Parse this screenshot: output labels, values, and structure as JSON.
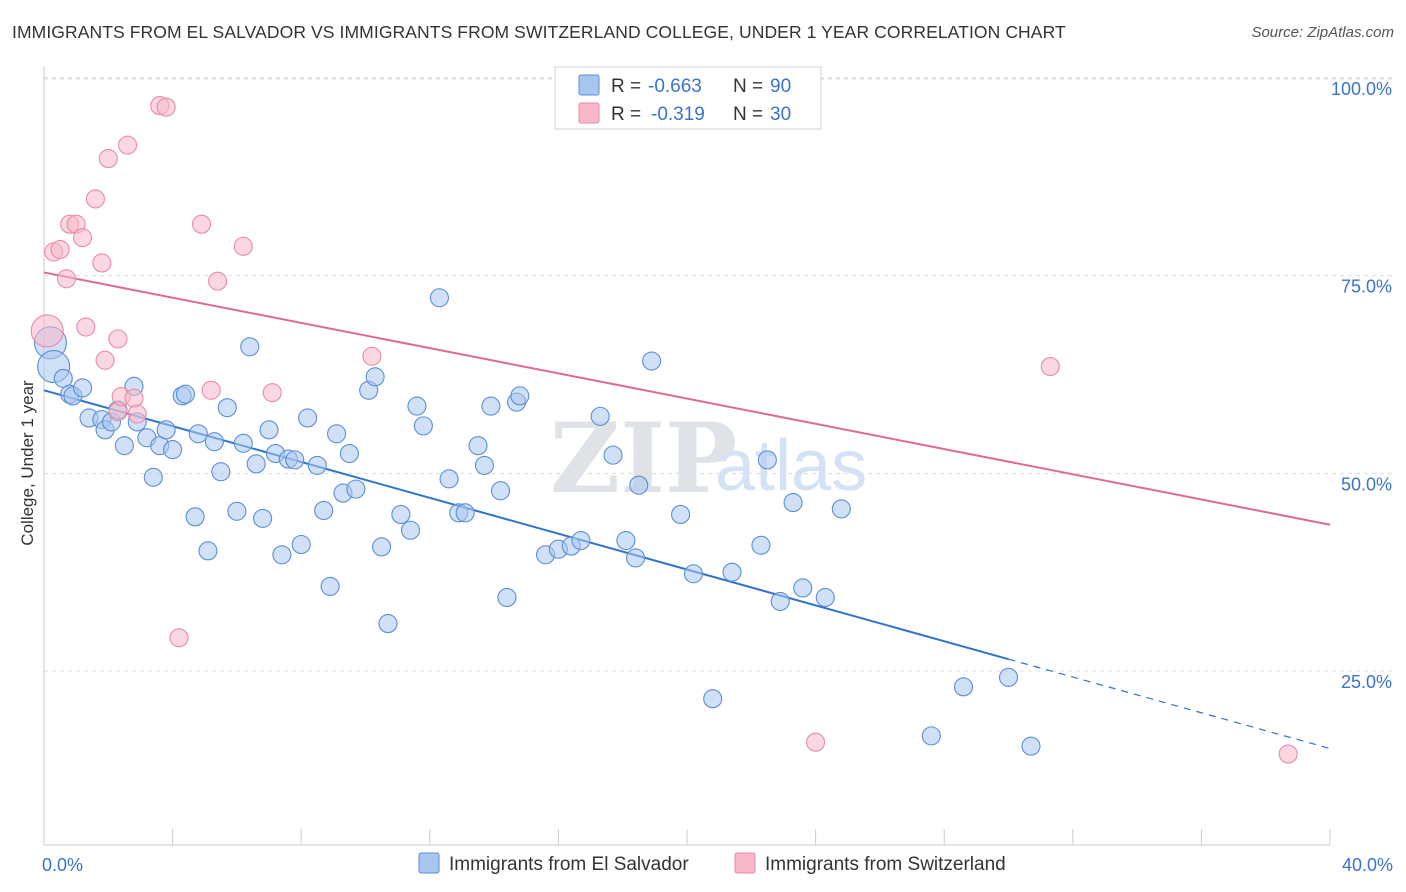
{
  "title": "IMMIGRANTS FROM EL SALVADOR VS IMMIGRANTS FROM SWITZERLAND COLLEGE, UNDER 1 YEAR CORRELATION CHART",
  "source": "Source: ZipAtlas.com",
  "watermark": {
    "zip": "ZIP",
    "atlas": "atlas"
  },
  "legend": {
    "r_label": "R =",
    "n_label": "N =",
    "rows": [
      {
        "r": "-0.663",
        "n": "90",
        "color": "#a9c7ee"
      },
      {
        "r": "-0.319",
        "n": "30",
        "color": "#f7b8c9"
      }
    ]
  },
  "chart_data": {
    "type": "scatter",
    "xlabel": "",
    "ylabel": "College, Under 1 year",
    "xlim": [
      0,
      40
    ],
    "ylim": [
      3,
      101
    ],
    "x_tick_labels": [
      {
        "value": 0,
        "label": "0.0%"
      },
      {
        "value": 40,
        "label": "40.0%"
      }
    ],
    "y_tick_labels": [
      {
        "value": 25,
        "label": "25.0%"
      },
      {
        "value": 50,
        "label": "50.0%"
      },
      {
        "value": 75,
        "label": "75.0%"
      },
      {
        "value": 100,
        "label": "100.0%"
      }
    ],
    "grid": "horizontal dashed",
    "legend_position": "top-center",
    "series": [
      {
        "name": "Immigrants from El Salvador",
        "color": "#a9c7ee",
        "stroke": "#5b8fd4",
        "trend": {
          "x0": 0,
          "y0": 60.5,
          "x1": 30,
          "y1": 26.5,
          "dash_to_x": 40,
          "dash_to_y": 15.2,
          "color": "#2f74c8"
        },
        "points": [
          [
            0.2,
            66.5
          ],
          [
            0.3,
            63.5
          ],
          [
            0.6,
            62
          ],
          [
            0.8,
            60
          ],
          [
            0.9,
            59.8
          ],
          [
            1.2,
            60.8
          ],
          [
            1.4,
            57
          ],
          [
            1.8,
            56.8
          ],
          [
            1.9,
            55.5
          ],
          [
            2.1,
            56.5
          ],
          [
            2.3,
            58
          ],
          [
            2.5,
            53.5
          ],
          [
            2.8,
            61
          ],
          [
            2.9,
            56.5
          ],
          [
            3.2,
            54.5
          ],
          [
            3.4,
            49.5
          ],
          [
            3.6,
            53.5
          ],
          [
            3.8,
            55.5
          ],
          [
            4.0,
            53
          ],
          [
            4.3,
            59.8
          ],
          [
            4.4,
            60
          ],
          [
            4.7,
            44.5
          ],
          [
            4.8,
            55
          ],
          [
            5.1,
            40.2
          ],
          [
            5.3,
            54
          ],
          [
            5.5,
            50.2
          ],
          [
            5.7,
            58.3
          ],
          [
            6.0,
            45.2
          ],
          [
            6.2,
            53.8
          ],
          [
            6.4,
            66
          ],
          [
            6.6,
            51.2
          ],
          [
            6.8,
            44.3
          ],
          [
            7.0,
            55.5
          ],
          [
            7.2,
            52.5
          ],
          [
            7.4,
            39.7
          ],
          [
            7.6,
            51.8
          ],
          [
            7.8,
            51.7
          ],
          [
            8.0,
            41
          ],
          [
            8.2,
            57
          ],
          [
            8.5,
            51
          ],
          [
            8.7,
            45.3
          ],
          [
            8.9,
            35.7
          ],
          [
            9.1,
            55
          ],
          [
            9.3,
            47.5
          ],
          [
            9.5,
            52.5
          ],
          [
            9.7,
            48
          ],
          [
            10.1,
            60.5
          ],
          [
            10.3,
            62.2
          ],
          [
            10.5,
            40.7
          ],
          [
            10.7,
            31
          ],
          [
            11.1,
            44.8
          ],
          [
            11.4,
            42.8
          ],
          [
            11.6,
            58.5
          ],
          [
            11.8,
            56
          ],
          [
            12.3,
            72.2
          ],
          [
            12.6,
            49.3
          ],
          [
            12.9,
            45
          ],
          [
            13.1,
            45
          ],
          [
            13.5,
            53.5
          ],
          [
            13.7,
            51
          ],
          [
            13.9,
            58.5
          ],
          [
            14.2,
            47.8
          ],
          [
            14.4,
            34.3
          ],
          [
            14.7,
            59
          ],
          [
            14.8,
            59.8
          ],
          [
            15.6,
            39.7
          ],
          [
            16.0,
            40.4
          ],
          [
            16.4,
            40.8
          ],
          [
            16.7,
            41.5
          ],
          [
            17.3,
            57.2
          ],
          [
            17.7,
            52.3
          ],
          [
            18.1,
            41.5
          ],
          [
            18.4,
            39.3
          ],
          [
            18.5,
            48.5
          ],
          [
            18.9,
            64.2
          ],
          [
            19.8,
            44.8
          ],
          [
            20.2,
            37.3
          ],
          [
            20.8,
            21.5
          ],
          [
            21.4,
            37.5
          ],
          [
            22.3,
            40.9
          ],
          [
            22.5,
            51.7
          ],
          [
            22.9,
            33.8
          ],
          [
            23.3,
            46.3
          ],
          [
            23.6,
            35.5
          ],
          [
            24.3,
            34.3
          ],
          [
            24.8,
            45.5
          ],
          [
            27.6,
            16.8
          ],
          [
            28.6,
            23
          ],
          [
            30.0,
            24.2
          ],
          [
            30.7,
            15.5
          ]
        ]
      },
      {
        "name": "Immigrants from Switzerland",
        "color": "#f7b8c9",
        "stroke": "#e88aa8",
        "trend": {
          "x0": 0,
          "y0": 75.4,
          "x1": 40,
          "y1": 43.5,
          "color": "#e06a93"
        },
        "points": [
          [
            0.1,
            68
          ],
          [
            0.3,
            78
          ],
          [
            0.5,
            78.3
          ],
          [
            0.7,
            74.6
          ],
          [
            0.8,
            81.5
          ],
          [
            1.0,
            81.5
          ],
          [
            1.2,
            79.8
          ],
          [
            1.3,
            68.5
          ],
          [
            1.6,
            84.7
          ],
          [
            1.8,
            76.6
          ],
          [
            1.9,
            64.3
          ],
          [
            2.0,
            89.8
          ],
          [
            2.3,
            57.8
          ],
          [
            2.3,
            67
          ],
          [
            2.4,
            59.7
          ],
          [
            2.6,
            91.5
          ],
          [
            2.8,
            59.5
          ],
          [
            2.9,
            57.5
          ],
          [
            3.6,
            96.5
          ],
          [
            3.8,
            96.3
          ],
          [
            4.2,
            29.2
          ],
          [
            4.9,
            81.5
          ],
          [
            5.2,
            60.5
          ],
          [
            5.4,
            74.3
          ],
          [
            6.2,
            78.7
          ],
          [
            7.1,
            60.2
          ],
          [
            10.2,
            64.8
          ],
          [
            24.0,
            16
          ],
          [
            31.3,
            63.5
          ],
          [
            38.7,
            14.5
          ]
        ]
      }
    ]
  },
  "bottom_legend": [
    {
      "label": "Immigrants from El Salvador",
      "color": "#a9c7ee",
      "stroke": "#5b8fd4"
    },
    {
      "label": "Immigrants from Switzerland",
      "color": "#f7b8c9",
      "stroke": "#e88aa8"
    }
  ]
}
